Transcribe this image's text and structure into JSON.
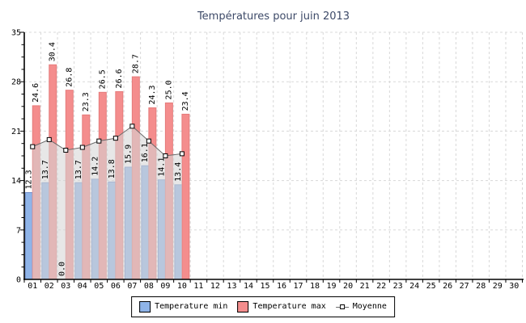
{
  "chart_data": {
    "type": "bar",
    "title": "Températures pour juin 2013",
    "categories": [
      "01",
      "02",
      "03",
      "04",
      "05",
      "06",
      "07",
      "08",
      "09",
      "10",
      "11",
      "12",
      "13",
      "14",
      "15",
      "16",
      "17",
      "18",
      "19",
      "20",
      "21",
      "22",
      "23",
      "24",
      "25",
      "26",
      "27",
      "28",
      "29",
      "30"
    ],
    "series": [
      {
        "name": "Temperature min",
        "type": "bar",
        "values": [
          12.3,
          13.7,
          0.0,
          13.7,
          14.2,
          13.8,
          15.9,
          16.1,
          14.1,
          13.4
        ]
      },
      {
        "name": "Temperature max",
        "type": "bar",
        "values": [
          24.6,
          30.4,
          26.8,
          23.3,
          26.5,
          26.6,
          28.7,
          24.3,
          25.0,
          23.4
        ]
      },
      {
        "name": "Moyenne",
        "type": "area-line",
        "values": [
          18.8,
          19.8,
          18.3,
          18.7,
          19.6,
          20.0,
          21.7,
          19.6,
          17.5,
          17.8
        ]
      }
    ],
    "xlabel": "",
    "ylabel": "",
    "ylim": [
      0,
      35
    ],
    "yticks": [
      0,
      7,
      14,
      21,
      28,
      35
    ],
    "minor_tick_step": 1.75,
    "grid": true,
    "grid_style": "dashed",
    "legend_position": "bottom",
    "value_labels": "rotated-90-above-bars"
  },
  "colors": {
    "temp_min_fill": "#8fb4e8",
    "temp_min_border": "#6f8cc8",
    "temp_max_fill": "#f48d8d",
    "temp_max_border": "#e57b7b",
    "moyenne_line": "#6b6b6b",
    "moyenne_area": "rgba(213,213,213,0.58)",
    "marker_fill": "#ffffff",
    "marker_border": "#000000",
    "grid": "#d8d8d8",
    "axis": "#000000",
    "tick_text": "#000000",
    "title_text": "#3d4a68",
    "background": "#ffffff"
  }
}
